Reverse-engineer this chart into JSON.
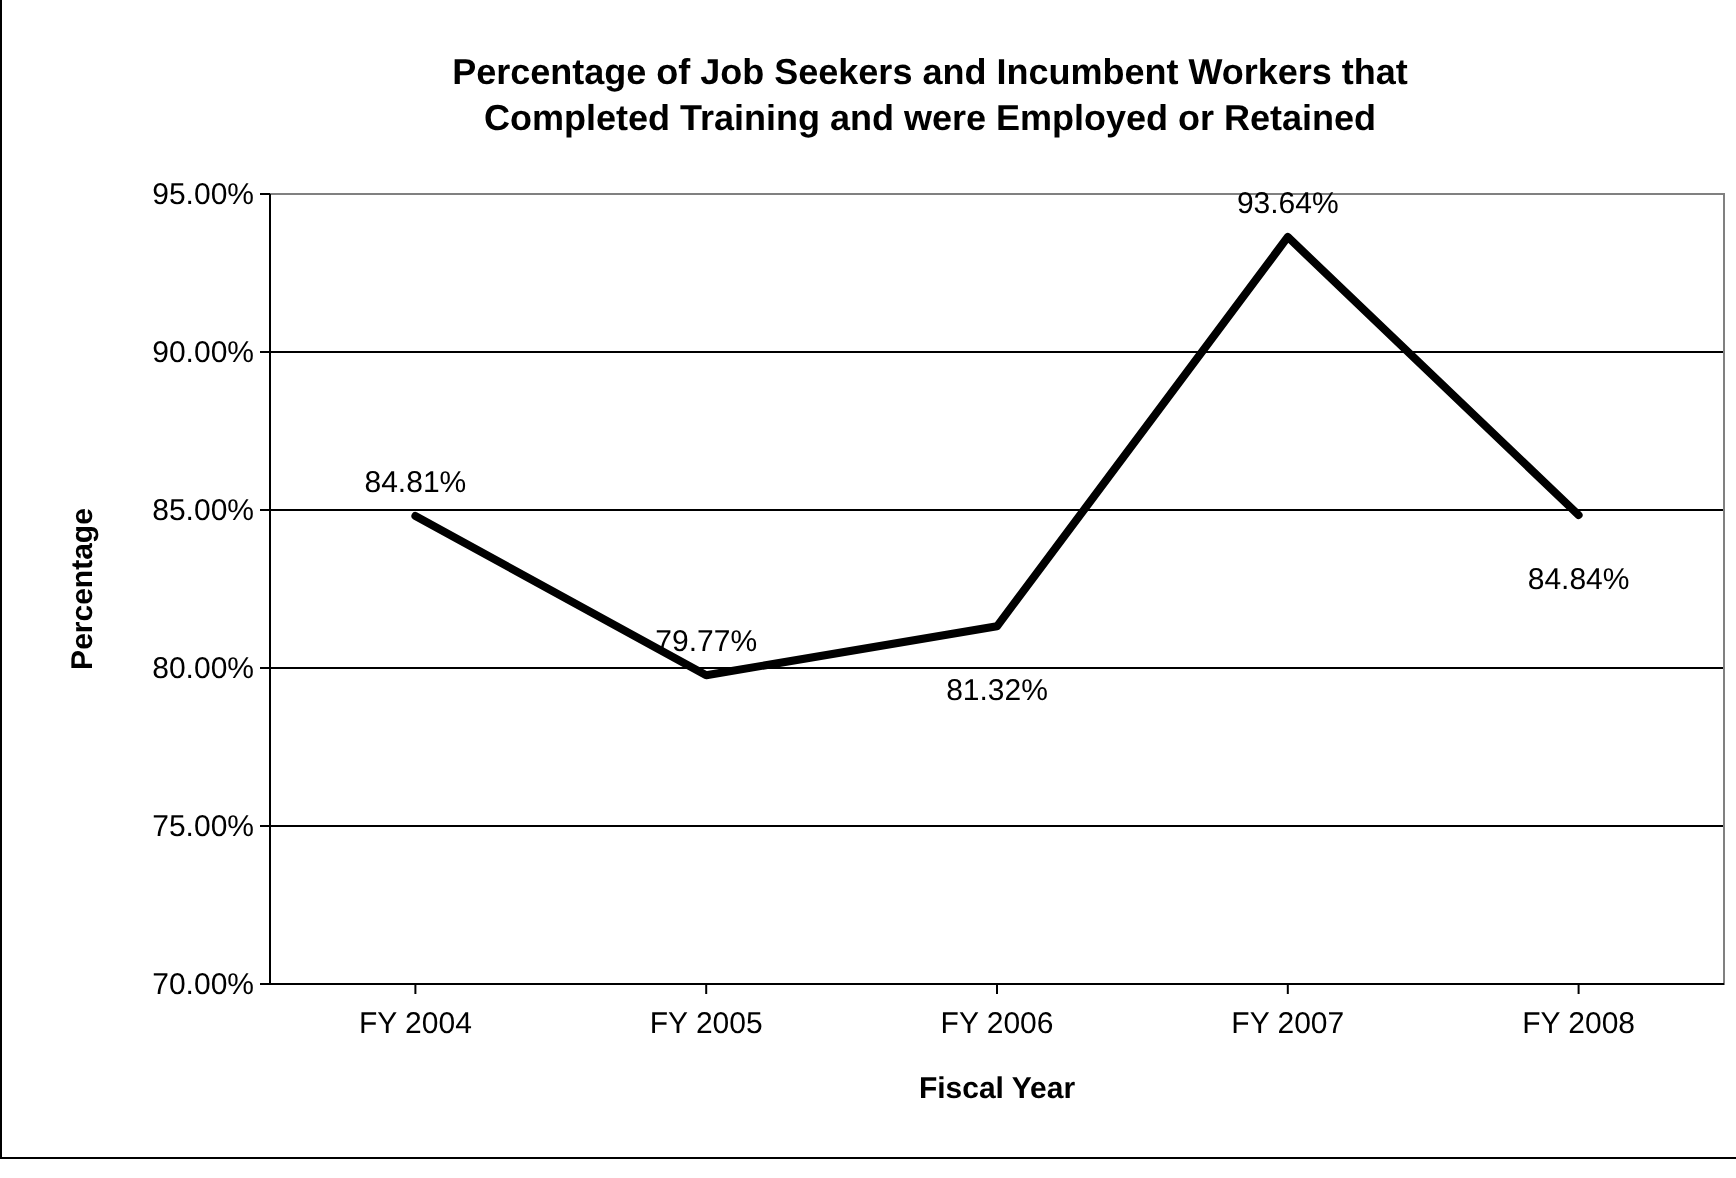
{
  "chart_data": {
    "type": "line",
    "title": "Percentage of Job Seekers and Incumbent Workers that\nCompleted Training and were Employed or Retained",
    "xlabel": "Fiscal Year",
    "ylabel": "Percentage",
    "categories": [
      "FY 2004",
      "FY 2005",
      "FY 2006",
      "FY 2007",
      "FY 2008"
    ],
    "series": [
      {
        "color": "#000000",
        "values": [
          84.81,
          79.77,
          81.32,
          93.64,
          84.84
        ],
        "value_labels": [
          "84.81%",
          "79.77%",
          "81.32%",
          "93.64%",
          "84.84%"
        ]
      }
    ],
    "ylim": [
      70,
      95
    ],
    "yticks": [
      {
        "value": 70,
        "label": "70.00%"
      },
      {
        "value": 75,
        "label": "75.00%"
      },
      {
        "value": 80,
        "label": "80.00%"
      },
      {
        "value": 85,
        "label": "85.00%"
      },
      {
        "value": 90,
        "label": "90.00%"
      },
      {
        "value": 95,
        "label": "95.00%"
      }
    ],
    "grid": "y",
    "marker": "none",
    "line_style": "solid"
  }
}
